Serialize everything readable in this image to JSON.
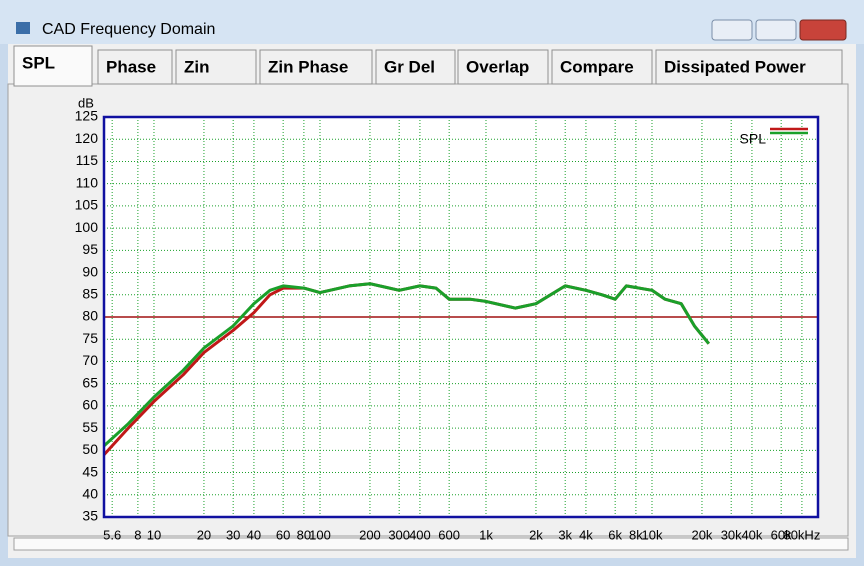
{
  "window": {
    "title": "CAD Frequency Domain"
  },
  "tabs": [
    "SPL",
    "Phase",
    "Zin",
    "Zin Phase",
    "Gr Del",
    "Overlap",
    "Compare",
    "Dissipated Power"
  ],
  "chart_data": {
    "type": "line",
    "ylabel": "dB",
    "xscale": "log",
    "grid": true,
    "legend": "upper right",
    "xlim": [
      5,
      100000
    ],
    "ylim": [
      35,
      125
    ],
    "yticks": [
      35,
      40,
      45,
      50,
      55,
      60,
      65,
      70,
      75,
      80,
      85,
      90,
      95,
      100,
      105,
      110,
      115,
      120,
      125
    ],
    "xticks": [
      5.6,
      8,
      10,
      20,
      30,
      40,
      60,
      80,
      100,
      200,
      300,
      400,
      600,
      {
        "value": 1000,
        "label": "1k"
      },
      {
        "value": 2000,
        "label": "2k"
      },
      {
        "value": 3000,
        "label": "3k"
      },
      {
        "value": 4000,
        "label": "4k"
      },
      {
        "value": 6000,
        "label": "6k"
      },
      {
        "value": 8000,
        "label": "8k"
      },
      {
        "value": 10000,
        "label": "10k"
      },
      {
        "value": 20000,
        "label": "20k"
      },
      {
        "value": 30000,
        "label": "30k"
      },
      {
        "value": 40000,
        "label": "40k"
      },
      {
        "value": 60000,
        "label": "60k"
      },
      {
        "value": 80000,
        "label": "80kHz"
      }
    ],
    "hline": {
      "value": 80,
      "color": "#a01010"
    },
    "x": [
      5,
      7,
      10,
      15,
      20,
      30,
      40,
      50,
      60,
      80,
      100,
      150,
      200,
      300,
      400,
      500,
      600,
      800,
      1000,
      1500,
      2000,
      3000,
      4000,
      5000,
      6000,
      7000,
      10000,
      12000,
      15000,
      18000,
      22000
    ],
    "series": [
      {
        "name": "SPL",
        "color": "#c01818",
        "values": [
          49,
          55,
          61,
          67,
          72,
          77,
          81,
          85,
          86.5,
          86.5,
          85.5,
          87,
          87.5,
          86,
          87,
          86.5,
          84,
          84,
          83.5,
          82,
          83,
          87,
          86,
          85,
          84,
          87,
          86,
          84,
          83,
          78,
          74
        ]
      },
      {
        "color": "#1aa02a",
        "values": [
          51,
          56,
          62,
          68,
          73,
          78,
          83,
          86,
          87,
          86.5,
          85.5,
          87,
          87.5,
          86,
          87,
          86.5,
          84,
          84,
          83.5,
          82,
          83,
          87,
          86,
          85,
          84,
          87,
          86,
          84,
          83,
          78,
          74
        ]
      }
    ]
  }
}
